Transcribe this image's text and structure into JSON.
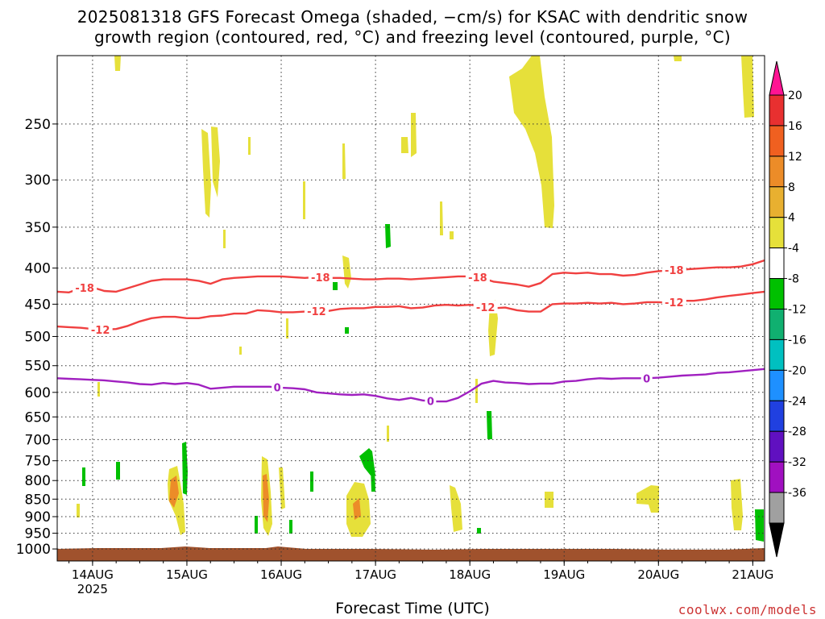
{
  "title_line1": "2025081318 GFS Forecast Omega (shaded, −cm/s) for KSAC with dendritic snow",
  "title_line2": "growth region (contoured, red, °C) and freezing level (contoured, purple, °C)",
  "credit": "coolwx.com/models",
  "chart_data": {
    "type": "contour",
    "xlabel": "Forecast Time (UTC)",
    "ylabel": "",
    "x_start": "2025-08-13 18Z",
    "x_ticks": [
      {
        "label": "14AUG",
        "sublabel": "2025",
        "hours": 6
      },
      {
        "label": "15AUG",
        "sublabel": "",
        "hours": 30
      },
      {
        "label": "16AUG",
        "sublabel": "",
        "hours": 54
      },
      {
        "label": "17AUG",
        "sublabel": "",
        "hours": 78
      },
      {
        "label": "18AUG",
        "sublabel": "",
        "hours": 102
      },
      {
        "label": "19AUG",
        "sublabel": "",
        "hours": 126
      },
      {
        "label": "20AUG",
        "sublabel": "",
        "hours": 150
      },
      {
        "label": "21AUG",
        "sublabel": "",
        "hours": 174
      }
    ],
    "xlim_hours": [
      -3,
      177
    ],
    "y_ticks": [
      250,
      300,
      350,
      400,
      450,
      500,
      550,
      600,
      650,
      700,
      750,
      800,
      850,
      900,
      950,
      1000
    ],
    "ylim_hpa": [
      1040,
      200
    ],
    "y_scale": "log",
    "grid": true,
    "colorbar": {
      "labels": [
        "20",
        "16",
        "12",
        "8",
        "4",
        "-4",
        "-8",
        "-12",
        "-16",
        "-20",
        "-24",
        "-28",
        "-32",
        "-36"
      ],
      "colors": [
        "#ff1493",
        "#e83030",
        "#f06020",
        "#ec8c28",
        "#e8b030",
        "#e6e03a",
        "#ffffff",
        "#00c000",
        "#10b070",
        "#00c0c0",
        "#1e90ff",
        "#2040e0",
        "#6010c0",
        "#a010c0",
        "#a0a0a0",
        "#000000"
      ]
    },
    "series": [
      {
        "name": "-18",
        "color": "#f04040",
        "hours": [
          -3,
          0,
          3,
          6,
          9,
          12,
          15,
          18,
          21,
          24,
          27,
          30,
          33,
          36,
          39,
          42,
          45,
          48,
          51,
          54,
          57,
          60,
          63,
          66,
          69,
          72,
          75,
          78,
          81,
          84,
          87,
          90,
          93,
          96,
          99,
          102,
          105,
          108,
          111,
          114,
          117,
          120,
          123,
          126,
          129,
          132,
          135,
          138,
          141,
          144,
          147,
          150,
          153,
          156,
          159,
          162,
          165,
          168,
          171,
          174,
          177
        ],
        "hpa": [
          432,
          433,
          427,
          426,
          431,
          432,
          427,
          422,
          417,
          415,
          415,
          415,
          417,
          421,
          415,
          413,
          412,
          411,
          411,
          411,
          412,
          413,
          412,
          413,
          413,
          414,
          415,
          415,
          414,
          414,
          415,
          414,
          413,
          412,
          411,
          411,
          413,
          418,
          420,
          422,
          425,
          420,
          408,
          406,
          407,
          406,
          408,
          408,
          410,
          409,
          406,
          404,
          403,
          402,
          401,
          400,
          399,
          399,
          398,
          395,
          390
        ],
        "labels_at_hours": [
          4,
          64,
          104,
          154
        ]
      },
      {
        "name": "-12",
        "color": "#f04040",
        "hours": [
          -3,
          0,
          3,
          6,
          9,
          12,
          15,
          18,
          21,
          24,
          27,
          30,
          33,
          36,
          39,
          42,
          45,
          48,
          51,
          54,
          57,
          60,
          63,
          66,
          69,
          72,
          75,
          78,
          81,
          84,
          87,
          90,
          93,
          96,
          99,
          102,
          105,
          108,
          111,
          114,
          117,
          120,
          123,
          126,
          129,
          132,
          135,
          138,
          141,
          144,
          147,
          150,
          153,
          156,
          159,
          162,
          165,
          168,
          171,
          174,
          177
        ],
        "hpa": [
          484,
          485,
          486,
          488,
          489,
          488,
          483,
          476,
          471,
          469,
          469,
          471,
          471,
          468,
          467,
          464,
          464,
          459,
          460,
          462,
          462,
          461,
          460,
          460,
          457,
          456,
          456,
          454,
          454,
          453,
          456,
          455,
          452,
          451,
          452,
          451,
          453,
          456,
          455,
          459,
          461,
          461,
          450,
          449,
          449,
          448,
          449,
          448,
          450,
          449,
          447,
          447,
          448,
          445,
          445,
          443,
          440,
          438,
          436,
          434,
          432
        ],
        "labels_at_hours": [
          8,
          63,
          106,
          154
        ]
      },
      {
        "name": "0",
        "color": "#a020c0",
        "hours": [
          -3,
          0,
          3,
          6,
          9,
          12,
          15,
          18,
          21,
          24,
          27,
          30,
          33,
          36,
          39,
          42,
          45,
          48,
          51,
          54,
          57,
          60,
          63,
          66,
          69,
          72,
          75,
          78,
          81,
          84,
          87,
          90,
          93,
          96,
          99,
          102,
          105,
          108,
          111,
          114,
          117,
          120,
          123,
          126,
          129,
          132,
          135,
          138,
          141,
          144,
          147,
          150,
          153,
          156,
          159,
          162,
          165,
          168,
          171,
          174,
          177
        ],
        "hpa": [
          573,
          574,
          575,
          576,
          577,
          579,
          581,
          584,
          585,
          582,
          584,
          582,
          585,
          593,
          591,
          589,
          589,
          589,
          589,
          591,
          592,
          594,
          600,
          602,
          604,
          605,
          604,
          607,
          612,
          615,
          611,
          616,
          618,
          618,
          611,
          598,
          583,
          578,
          581,
          582,
          584,
          583,
          583,
          579,
          578,
          575,
          573,
          574,
          573,
          573,
          573,
          572,
          570,
          568,
          567,
          566,
          563,
          562,
          560,
          558,
          556
        ],
        "labels_at_hours": [
          53,
          92,
          147
        ]
      }
    ]
  }
}
